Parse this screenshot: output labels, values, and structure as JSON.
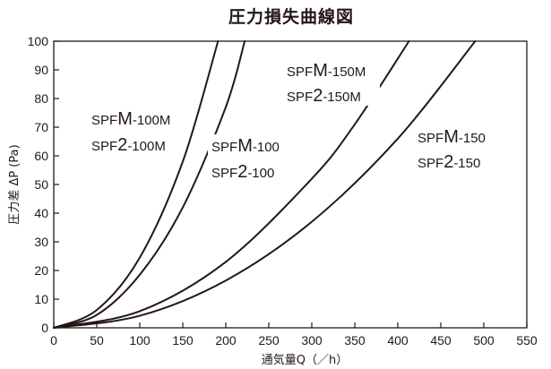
{
  "chart_data": {
    "type": "line",
    "title": "圧力損失曲線図",
    "xlabel": "通気量Q（／h）",
    "ylabel": "圧力差 ΔP (Pa)",
    "xlim": [
      0,
      550
    ],
    "ylim": [
      0,
      100
    ],
    "xticks": [
      0,
      50,
      100,
      150,
      200,
      250,
      300,
      350,
      400,
      450,
      500,
      550
    ],
    "yticks": [
      0,
      10,
      20,
      30,
      40,
      50,
      60,
      70,
      80,
      90,
      100
    ],
    "grid": false,
    "series": [
      {
        "label_lines": [
          [
            "SPF",
            "M",
            "-100M"
          ],
          [
            "SPF",
            "2",
            "-100M"
          ]
        ],
        "x": [
          0,
          50,
          100,
          150,
          191
        ],
        "y": [
          0,
          6.2,
          24.5,
          58,
          100
        ]
      },
      {
        "label_lines": [
          [
            "SPF",
            "M",
            "-100"
          ],
          [
            "SPF",
            "2",
            "-100"
          ]
        ],
        "x": [
          0,
          50,
          100,
          150,
          200,
          222
        ],
        "y": [
          0,
          4.5,
          18.5,
          42,
          77,
          100
        ]
      },
      {
        "label_lines": [
          [
            "SPF",
            "M",
            "-150M"
          ],
          [
            "SPF",
            "2",
            "-150M"
          ]
        ],
        "x": [
          0,
          100,
          200,
          300,
          350,
          413
        ],
        "y": [
          0,
          5.8,
          23,
          52,
          71,
          100
        ]
      },
      {
        "label_lines": [
          [
            "SPF",
            "M",
            "-150"
          ],
          [
            "SPF",
            "2",
            "-150"
          ]
        ],
        "x": [
          0,
          100,
          200,
          300,
          400,
          490
        ],
        "y": [
          0,
          4.2,
          16.5,
          37,
          66,
          100
        ]
      }
    ]
  }
}
